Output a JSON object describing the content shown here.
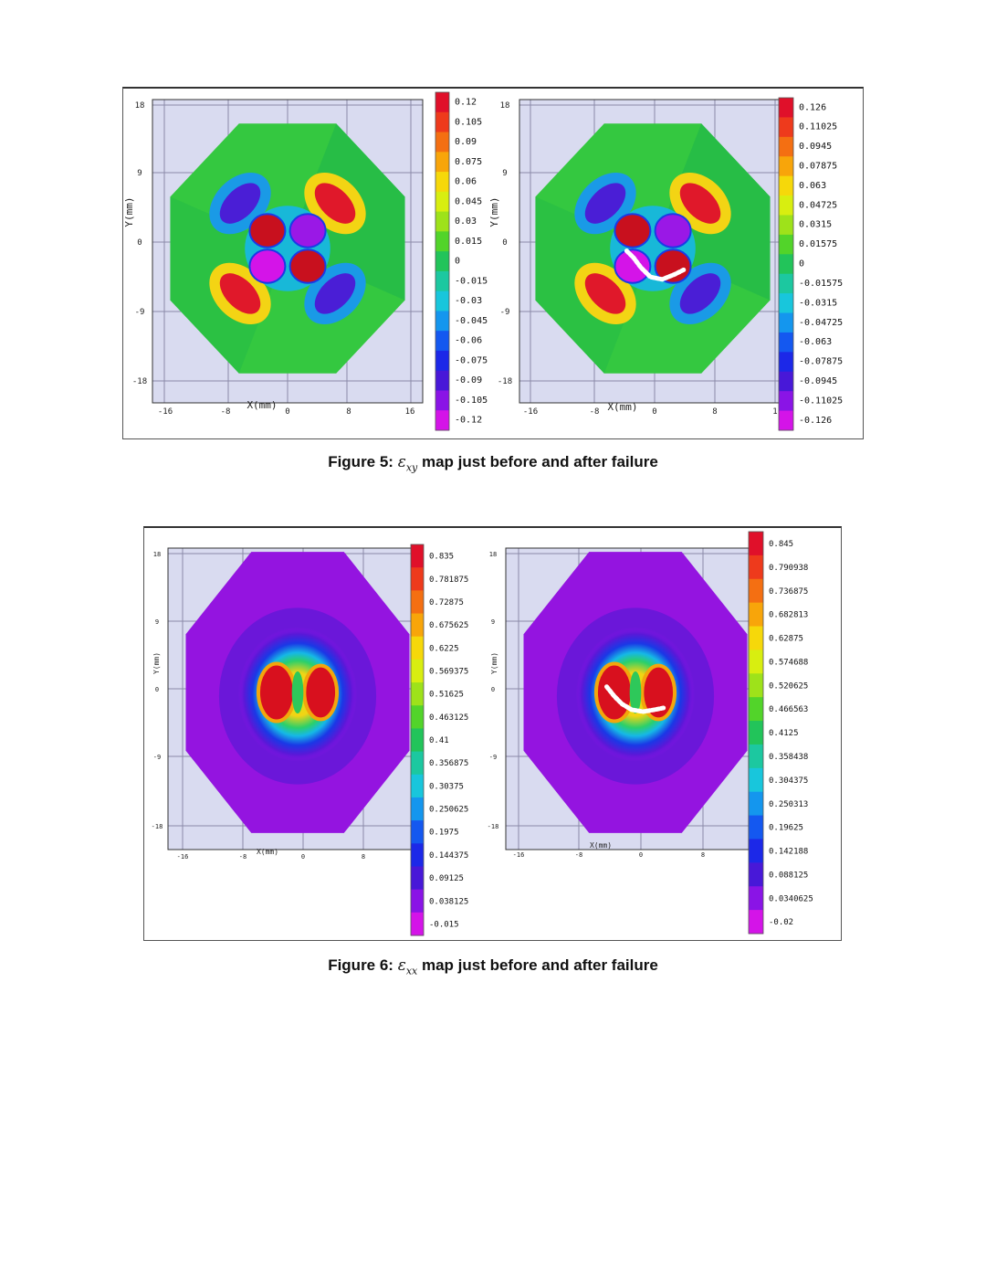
{
  "figures": [
    {
      "id": "fig5",
      "caption": {
        "prefix": "Figure 5: ",
        "symbol": "ε",
        "subscript": "xy",
        "suffix": " map just before and after failure"
      },
      "panels": [
        {
          "label": "before failure",
          "x_axis_label": "X(mm)",
          "y_axis_label": "Y(mm)",
          "x_ticks": [
            "-16",
            "-8",
            "0",
            "8",
            "16"
          ],
          "y_ticks": [
            "18",
            "9",
            "0",
            "-9",
            "-18"
          ],
          "colorbar": [
            "0.12",
            "0.105",
            "0.09",
            "0.075",
            "0.06",
            "0.045",
            "0.03",
            "0.015",
            "0",
            "-0.015",
            "-0.03",
            "-0.045",
            "-0.06",
            "-0.075",
            "-0.09",
            "-0.105",
            "-0.12"
          ],
          "cracked": false
        },
        {
          "label": "after failure",
          "x_axis_label": "X(mm)",
          "y_axis_label": "Y(mm)",
          "x_ticks": [
            "-16",
            "-8",
            "0",
            "8",
            "1"
          ],
          "y_ticks": [
            "18",
            "9",
            "0",
            "-9",
            "-18"
          ],
          "colorbar": [
            "0.126",
            "0.11025",
            "0.0945",
            "0.07875",
            "0.063",
            "0.04725",
            "0.0315",
            "0.01575",
            "0",
            "-0.01575",
            "-0.0315",
            "-0.04725",
            "-0.063",
            "-0.07875",
            "-0.0945",
            "-0.11025",
            "-0.126"
          ],
          "cracked": true
        }
      ]
    },
    {
      "id": "fig6",
      "caption": {
        "prefix": "Figure 6: ",
        "symbol": "ε",
        "subscript": "xx",
        "suffix": " map just before and after failure"
      },
      "panels": [
        {
          "label": "before failure",
          "x_axis_label": "X(mm)",
          "y_axis_label": "Y(mm)",
          "x_ticks": [
            "-16",
            "-8",
            "0",
            "8"
          ],
          "y_ticks": [
            "18",
            "9",
            "0",
            "-9",
            "-18"
          ],
          "colorbar": [
            "0.835",
            "0.781875",
            "0.72875",
            "0.675625",
            "0.6225",
            "0.569375",
            "0.51625",
            "0.463125",
            "0.41",
            "0.356875",
            "0.30375",
            "0.250625",
            "0.1975",
            "0.144375",
            "0.09125",
            "0.038125",
            "-0.015"
          ],
          "cracked": false
        },
        {
          "label": "after failure",
          "x_axis_label": "X(mm)",
          "y_axis_label": "Y(mm)",
          "x_ticks": [
            "-16",
            "-8",
            "0",
            "8"
          ],
          "y_ticks": [
            "18",
            "9",
            "0",
            "-9",
            "-18"
          ],
          "colorbar": [
            "0.845",
            "0.790938",
            "0.736875",
            "0.682813",
            "0.62875",
            "0.574688",
            "0.520625",
            "0.466563",
            "0.4125",
            "0.358438",
            "0.304375",
            "0.250313",
            "0.19625",
            "0.142188",
            "0.088125",
            "0.0340625",
            "-0.02"
          ],
          "cracked": true
        }
      ]
    }
  ],
  "colors": {
    "scale": [
      "#e0102a",
      "#ee3a1c",
      "#f46f12",
      "#f8a50a",
      "#f6d80a",
      "#d8ee10",
      "#9ee21a",
      "#52d42a",
      "#22c45a",
      "#1cc8a0",
      "#18c6dc",
      "#1496ee",
      "#1458f0",
      "#1c28e8",
      "#4818d8",
      "#8a14e6",
      "#d414e8"
    ],
    "panel_background": "#d9dbf0",
    "grid": "#ffffff",
    "crack": "#ffffff"
  }
}
